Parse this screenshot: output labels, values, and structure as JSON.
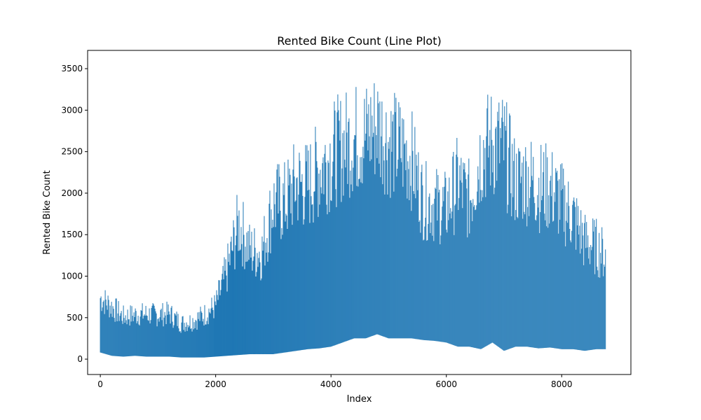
{
  "chart_data": {
    "type": "line",
    "title": "Rented Bike Count (Line Plot)",
    "xlabel": "Index",
    "ylabel": "Rented Bike Count",
    "xlim": [
      -220,
      9200
    ],
    "ylim": [
      -185,
      3720
    ],
    "xticks": [
      0,
      2000,
      4000,
      6000,
      8000
    ],
    "yticks": [
      0,
      500,
      1000,
      1500,
      2000,
      2500,
      3000,
      3500
    ],
    "grid": false,
    "series": [
      {
        "color": "#1f77b4",
        "envelope_step": 200,
        "x": [
          0,
          200,
          400,
          600,
          800,
          1000,
          1200,
          1400,
          1600,
          1800,
          2000,
          2200,
          2400,
          2600,
          2800,
          3000,
          3200,
          3400,
          3600,
          3800,
          4000,
          4200,
          4400,
          4600,
          4800,
          5000,
          5200,
          5400,
          5600,
          5800,
          6000,
          6200,
          6400,
          6600,
          6800,
          7000,
          7200,
          7400,
          7600,
          7800,
          8000,
          8200,
          8400,
          8600,
          8759
        ],
        "min": [
          80,
          40,
          30,
          40,
          30,
          30,
          30,
          20,
          20,
          20,
          30,
          40,
          50,
          60,
          60,
          60,
          80,
          100,
          120,
          130,
          150,
          200,
          250,
          250,
          300,
          250,
          250,
          250,
          230,
          220,
          200,
          150,
          150,
          120,
          200,
          100,
          150,
          150,
          130,
          140,
          120,
          120,
          100,
          120,
          120
        ],
        "max": [
          930,
          800,
          650,
          680,
          690,
          680,
          700,
          550,
          590,
          680,
          820,
          1370,
          2100,
          1660,
          1640,
          2400,
          2410,
          2700,
          2660,
          2920,
          3120,
          3250,
          3350,
          3400,
          3560,
          3300,
          3210,
          3030,
          2400,
          2350,
          2280,
          2720,
          2410,
          3180,
          3300,
          3250,
          2700,
          2780,
          2650,
          2620,
          2400,
          2180,
          1800,
          1710,
          1570
        ]
      }
    ]
  }
}
